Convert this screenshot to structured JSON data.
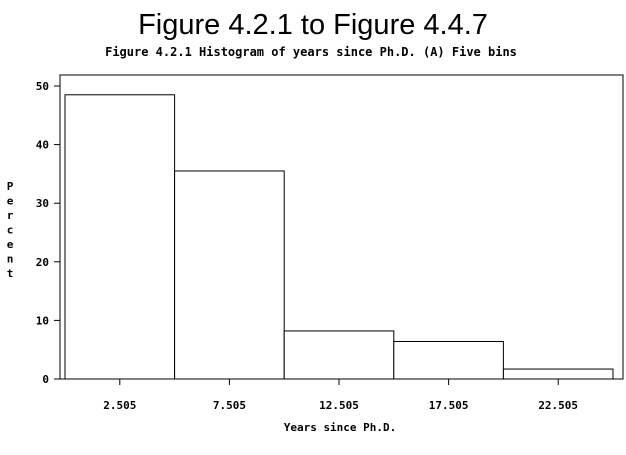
{
  "chart_data": {
    "type": "bar",
    "title": "Figure 4.2.1 to Figure 4.4.7",
    "subtitle": "Figure 4.2.1 Histogram of years since Ph.D. (A) Five bins",
    "xlabel": "Years since Ph.D.",
    "ylabel": "Percent",
    "categories": [
      "2.505",
      "7.505",
      "12.505",
      "17.505",
      "22.505"
    ],
    "values": [
      48.5,
      35.5,
      8.2,
      6.4,
      1.7
    ],
    "ylim": [
      0,
      50
    ],
    "yticks": [
      0,
      10,
      20,
      30,
      40,
      50
    ],
    "grid": false,
    "bar_fill": "#ffffff",
    "bar_stroke": "#000000"
  }
}
